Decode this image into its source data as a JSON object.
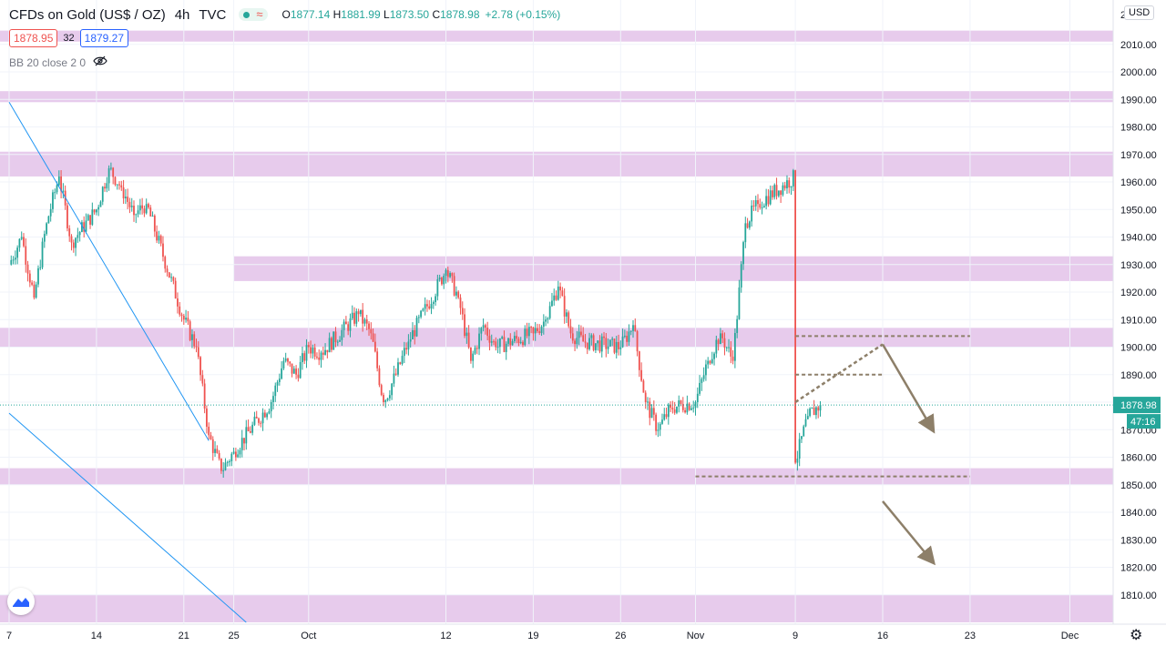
{
  "header": {
    "symbol": "CFDs on Gold (US$ / OZ)",
    "timeframe": "4h",
    "source": "TVC",
    "open": "1877.14",
    "high": "1881.99",
    "low": "1873.50",
    "close": "1878.98",
    "change": "+2.78 (+0.15%)",
    "open_label": "O",
    "high_label": "H",
    "low_label": "L",
    "close_label": "C"
  },
  "quote": {
    "bid": "1878.95",
    "spread": "32",
    "ask": "1879.27"
  },
  "indicator": {
    "label": "BB 20 close 2 0"
  },
  "currency": "USD",
  "price_label": {
    "value": "1878.98",
    "countdown": "47:16"
  },
  "colors": {
    "up": "#26a69a",
    "down": "#ef5350",
    "zone": "#e1bee7",
    "trendline": "#2196f3",
    "drawing": "#8d7f69",
    "price_tag": "#26a69a"
  },
  "chart_data": {
    "type": "candlestick",
    "title": "CFDs on Gold (US$ / OZ)",
    "interval": "4h",
    "ylim": [
      1800,
      2020
    ],
    "y_ticks": [
      "1810.00",
      "1820.00",
      "1830.00",
      "1840.00",
      "1850.00",
      "1860.00",
      "1870.00",
      "1880.00",
      "1890.00",
      "1900.00",
      "1910.00",
      "1920.00",
      "1930.00",
      "1940.00",
      "1950.00",
      "1960.00",
      "1970.00",
      "1980.00",
      "1990.00",
      "2000.00",
      "2010.00"
    ],
    "y_top_partial": "2",
    "x_ticks": [
      "7",
      "14",
      "21",
      "25",
      "Oct",
      "12",
      "19",
      "26",
      "Nov",
      "9",
      "16",
      "23",
      "Dec"
    ],
    "last_price": 1878.98,
    "zones": [
      {
        "from": 2011,
        "to": 2015
      },
      {
        "from": 1989,
        "to": 1993
      },
      {
        "from": 1962,
        "to": 1971
      },
      {
        "from": 1924,
        "to": 1933,
        "start": "25"
      },
      {
        "from": 1900,
        "to": 1907
      },
      {
        "from": 1850,
        "to": 1856
      },
      {
        "from": 1800,
        "to": 1810
      }
    ],
    "trendlines": [
      {
        "from": {
          "date": "7",
          "price": 1989
        },
        "to": {
          "date": "23",
          "price": 1866
        }
      },
      {
        "from": {
          "date": "7",
          "price": 1876
        },
        "to": {
          "date": "26",
          "price": 1800
        }
      }
    ],
    "levels": [
      {
        "price": 1904,
        "from": "Nov 9",
        "to": "Nov 23"
      },
      {
        "price": 1890,
        "from": "Nov 9",
        "to": "Nov 16"
      },
      {
        "price": 1853,
        "from": "Nov",
        "to": "Nov 23"
      }
    ],
    "projection_arrows": [
      {
        "from": {
          "date": "Nov 9",
          "price": 1880
        },
        "to": {
          "date": "Nov 16",
          "price": 1901
        },
        "dashed": true
      },
      {
        "from": {
          "date": "Nov 16",
          "price": 1901
        },
        "to": {
          "date": "Nov 20",
          "price": 1870
        },
        "dashed": false
      },
      {
        "from": {
          "date": "Nov 16",
          "price": 1844
        },
        "to": {
          "date": "Nov 20",
          "price": 1822
        },
        "dashed": false
      }
    ],
    "price_path": [
      {
        "date": "7",
        "price": 1930
      },
      {
        "date": "8",
        "price": 1940
      },
      {
        "date": "9",
        "price": 1918
      },
      {
        "date": "10",
        "price": 1945
      },
      {
        "date": "11",
        "price": 1962
      },
      {
        "date": "12",
        "price": 1938
      },
      {
        "date": "14",
        "price": 1950
      },
      {
        "date": "15",
        "price": 1965
      },
      {
        "date": "16",
        "price": 1958
      },
      {
        "date": "17",
        "price": 1948
      },
      {
        "date": "18",
        "price": 1952
      },
      {
        "date": "21",
        "price": 1910
      },
      {
        "date": "22",
        "price": 1900
      },
      {
        "date": "23",
        "price": 1868
      },
      {
        "date": "24",
        "price": 1855
      },
      {
        "date": "25",
        "price": 1862
      },
      {
        "date": "28",
        "price": 1880
      },
      {
        "date": "29",
        "price": 1895
      },
      {
        "date": "30",
        "price": 1890
      },
      {
        "date": "Oct",
        "price": 1900
      },
      {
        "date": "Oct 2",
        "price": 1898
      },
      {
        "date": "Oct 5",
        "price": 1912
      },
      {
        "date": "Oct 6",
        "price": 1905
      },
      {
        "date": "Oct 7",
        "price": 1880
      },
      {
        "date": "Oct 8",
        "price": 1890
      },
      {
        "date": "Oct 9",
        "price": 1902
      },
      {
        "date": "Oct 12",
        "price": 1928
      },
      {
        "date": "Oct 13",
        "price": 1918
      },
      {
        "date": "Oct 14",
        "price": 1895
      },
      {
        "date": "Oct 15",
        "price": 1908
      },
      {
        "date": "Oct 16",
        "price": 1900
      },
      {
        "date": "Oct 19",
        "price": 1905
      },
      {
        "date": "Oct 20",
        "price": 1910
      },
      {
        "date": "Oct 21",
        "price": 1922
      },
      {
        "date": "Oct 22",
        "price": 1905
      },
      {
        "date": "Oct 23",
        "price": 1902
      },
      {
        "date": "Oct 26",
        "price": 1900
      },
      {
        "date": "Oct 27",
        "price": 1908
      },
      {
        "date": "Oct 28",
        "price": 1880
      },
      {
        "date": "Oct 29",
        "price": 1870
      },
      {
        "date": "Oct 30",
        "price": 1878
      },
      {
        "date": "Nov",
        "price": 1880
      },
      {
        "date": "Nov 2",
        "price": 1895
      },
      {
        "date": "Nov 3",
        "price": 1905
      },
      {
        "date": "Nov 4",
        "price": 1895
      },
      {
        "date": "Nov 5",
        "price": 1945
      },
      {
        "date": "Nov 6",
        "price": 1952
      },
      {
        "date": "Nov 9",
        "price": 1962
      },
      {
        "date": "Nov 9",
        "price": 1858
      },
      {
        "date": "Nov 10",
        "price": 1875
      },
      {
        "date": "Nov 11",
        "price": 1879
      }
    ]
  }
}
